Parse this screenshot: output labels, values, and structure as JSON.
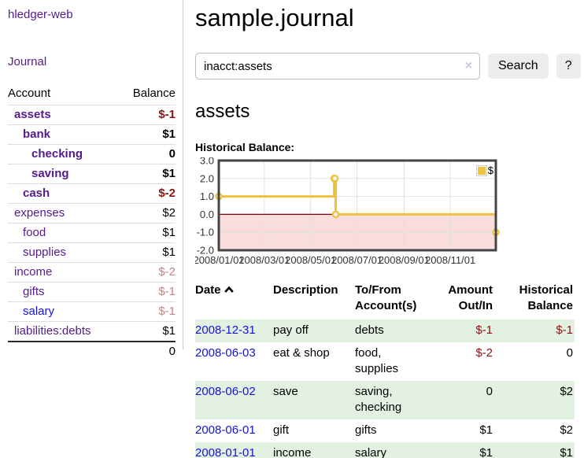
{
  "app": {
    "title": "hledger-web"
  },
  "sidebar": {
    "journal_link": "Journal",
    "account_header": {
      "account": "Account",
      "balance": "Balance"
    },
    "accounts": [
      {
        "label": "assets",
        "balance": "$-1",
        "level": 1,
        "bold": true
      },
      {
        "label": "bank",
        "balance": "$1",
        "level": 2,
        "bold": true
      },
      {
        "label": "checking",
        "balance": "0",
        "level": 3,
        "bold": true
      },
      {
        "label": "saving",
        "balance": "$1",
        "level": 3,
        "bold": true
      },
      {
        "label": "cash",
        "balance": "$-2",
        "level": 2,
        "bold": true
      },
      {
        "label": "expenses",
        "balance": "$2",
        "level": 1,
        "bold": false
      },
      {
        "label": "food",
        "balance": "$1",
        "level": 2,
        "bold": false
      },
      {
        "label": "supplies",
        "balance": "$1",
        "level": 2,
        "bold": false
      },
      {
        "label": "income",
        "balance": "$-2",
        "level": 1,
        "bold": false
      },
      {
        "label": "gifts",
        "balance": "$-1",
        "level": 2,
        "bold": false
      },
      {
        "label": "salary",
        "balance": "$-1",
        "level": 2,
        "bold": false,
        "unvisited": true
      },
      {
        "label": "liabilities:debts",
        "balance": "$1",
        "level": 1,
        "bold": false
      }
    ],
    "total": "0"
  },
  "header": {
    "title": "sample.journal"
  },
  "search": {
    "value": "inacct:assets",
    "clear_icon": "×",
    "button_label": "Search",
    "help_label": "?"
  },
  "main": {
    "account_title": "assets",
    "chart_label": "Historical Balance:"
  },
  "chart_data": {
    "type": "line",
    "title": "Historical Balance:",
    "step": true,
    "series": [
      {
        "name": "$",
        "color": "#EDC240"
      }
    ],
    "points": [
      {
        "date": "2008-01-01",
        "day": 0,
        "value": 1
      },
      {
        "date": "2008-06-01",
        "day": 152,
        "value": 2
      },
      {
        "date": "2008-06-02",
        "day": 153,
        "value": 2
      },
      {
        "date": "2008-06-03",
        "day": 154,
        "value": 0
      },
      {
        "date": "2008-12-31",
        "day": 365,
        "value": -1
      }
    ],
    "xlim_days": [
      0,
      365
    ],
    "ylim": [
      -2,
      3
    ],
    "x_ticks": [
      {
        "label": "2008/01/01",
        "day": 0
      },
      {
        "label": "2008/03/01",
        "day": 60
      },
      {
        "label": "2008/05/01",
        "day": 121
      },
      {
        "label": "2008/07/01",
        "day": 182
      },
      {
        "label": "2008/09/01",
        "day": 244
      },
      {
        "label": "2008/11/01",
        "day": 305
      }
    ],
    "y_ticks": [
      "3.0",
      "2.0",
      "1.0",
      "0.0",
      "-1.0",
      "-2.0"
    ],
    "grid": true,
    "legend_position": "top-right",
    "negative_region_fill": "#F9DCDC",
    "zero_line_color": "#8B0000"
  },
  "table": {
    "headers": [
      "Date",
      "Description",
      "To/From Account(s)",
      "Amount Out/In",
      "Historical Balance"
    ],
    "rows": [
      {
        "date": "2008-12-31",
        "description": "pay off",
        "accounts": "debts",
        "amount": "$-1",
        "balance": "$-1"
      },
      {
        "date": "2008-06-03",
        "description": "eat & shop",
        "accounts": "food, supplies",
        "amount": "$-2",
        "balance": "0"
      },
      {
        "date": "2008-06-02",
        "description": "save",
        "accounts": "saving, checking",
        "amount": "0",
        "balance": "$2"
      },
      {
        "date": "2008-06-01",
        "description": "gift",
        "accounts": "gifts",
        "amount": "$1",
        "balance": "$2"
      },
      {
        "date": "2008-01-01",
        "description": "income",
        "accounts": "salary",
        "amount": "$1",
        "balance": "$1"
      }
    ]
  },
  "colors": {
    "link_purple": "#551A8B",
    "link_blue": "#1414D6",
    "negative": "#8B1212",
    "negative_faded": "#C48484",
    "row_green": "#E3F1E3",
    "series_gold": "#EDC240"
  }
}
